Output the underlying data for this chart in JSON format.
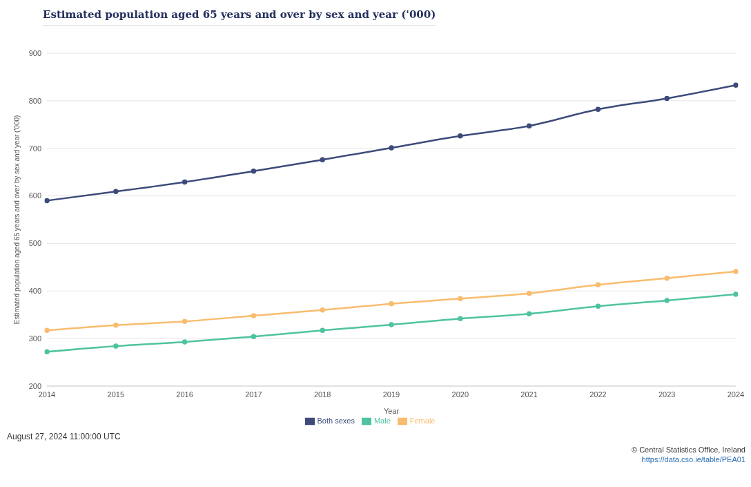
{
  "chart_data": {
    "type": "line",
    "title": "Estimated population aged 65 years and over by sex and year ('000)",
    "xlabel": "Year",
    "ylabel": "Estimated population aged 65 years and over by sex and year ('000)",
    "x": [
      2014,
      2015,
      2016,
      2017,
      2018,
      2019,
      2020,
      2021,
      2022,
      2023,
      2024
    ],
    "series": [
      {
        "name": "Both sexes",
        "color": "#3d4a7a",
        "values": [
          590,
          609,
          629,
          652,
          676,
          701,
          726,
          747,
          782,
          805,
          833
        ]
      },
      {
        "name": "Male",
        "color": "#4fc3a0",
        "values": [
          272,
          284,
          293,
          304,
          317,
          329,
          342,
          352,
          368,
          380,
          393
        ]
      },
      {
        "name": "Female",
        "color": "#f9bc6e",
        "values": [
          317,
          328,
          336,
          348,
          360,
          373,
          384,
          395,
          413,
          427,
          441
        ]
      }
    ],
    "xlim": [
      2014,
      2024
    ],
    "xticks": [
      2014,
      2015,
      2016,
      2017,
      2018,
      2019,
      2020,
      2021,
      2022,
      2023,
      2024
    ],
    "ylim": [
      200,
      900
    ],
    "yticks": [
      200,
      300,
      400,
      500,
      600,
      700,
      800,
      900
    ],
    "grid": "y",
    "legend": "bottom",
    "marker": "circle",
    "line_style": "solid",
    "annotations": [
      "August 27, 2024 11:00:00 UTC",
      "© Central Statistics Office, Ireland",
      "https://data.cso.ie/table/PEA01"
    ]
  }
}
